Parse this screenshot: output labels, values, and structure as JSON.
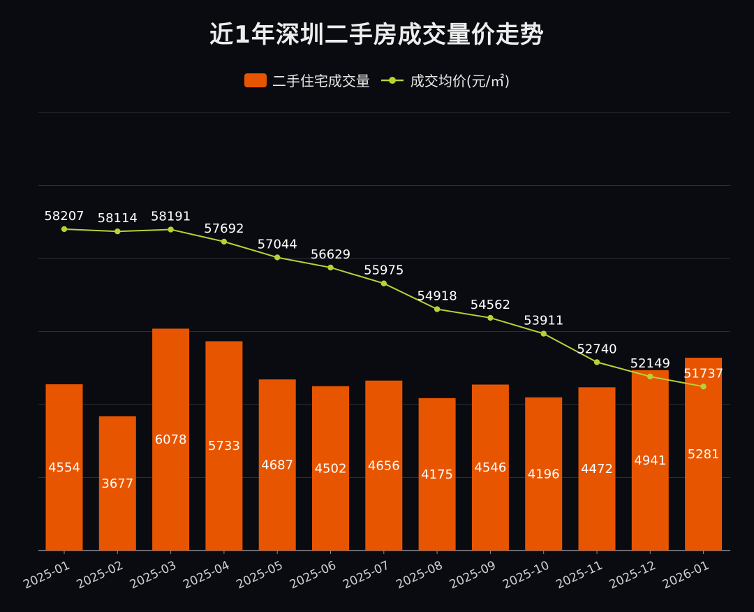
{
  "chart_data": {
    "type": "bar",
    "title": "近1年深圳二手房成交量价走势",
    "categories": [
      "2025-01",
      "2025-02",
      "2025-03",
      "2025-04",
      "2025-05",
      "2025-06",
      "2025-07",
      "2025-08",
      "2025-09",
      "2025-10",
      "2025-11",
      "2025-12",
      "2026-01"
    ],
    "series": [
      {
        "name": "二手住宅成交量",
        "type": "bar",
        "color": "#e85500",
        "values": [
          4554,
          3677,
          6078,
          5733,
          4687,
          4502,
          4656,
          4175,
          4546,
          4196,
          4472,
          4941,
          5281
        ]
      },
      {
        "name": "成交均价(元/㎡)",
        "type": "line",
        "color": "#b5d334",
        "values": [
          58207,
          58114,
          58191,
          57692,
          57044,
          56629,
          55975,
          54918,
          54562,
          53911,
          52740,
          52149,
          51737
        ]
      }
    ],
    "bar_axis_range": [
      0,
      12000
    ],
    "line_axis_range": [
      45000,
      63000
    ],
    "gridlines": true,
    "legend_position": "top-center",
    "xlabel": "",
    "ylabel": ""
  },
  "colors": {
    "background": "#090b10",
    "grid": "#2c2f36",
    "axis": "#8a8d94"
  }
}
